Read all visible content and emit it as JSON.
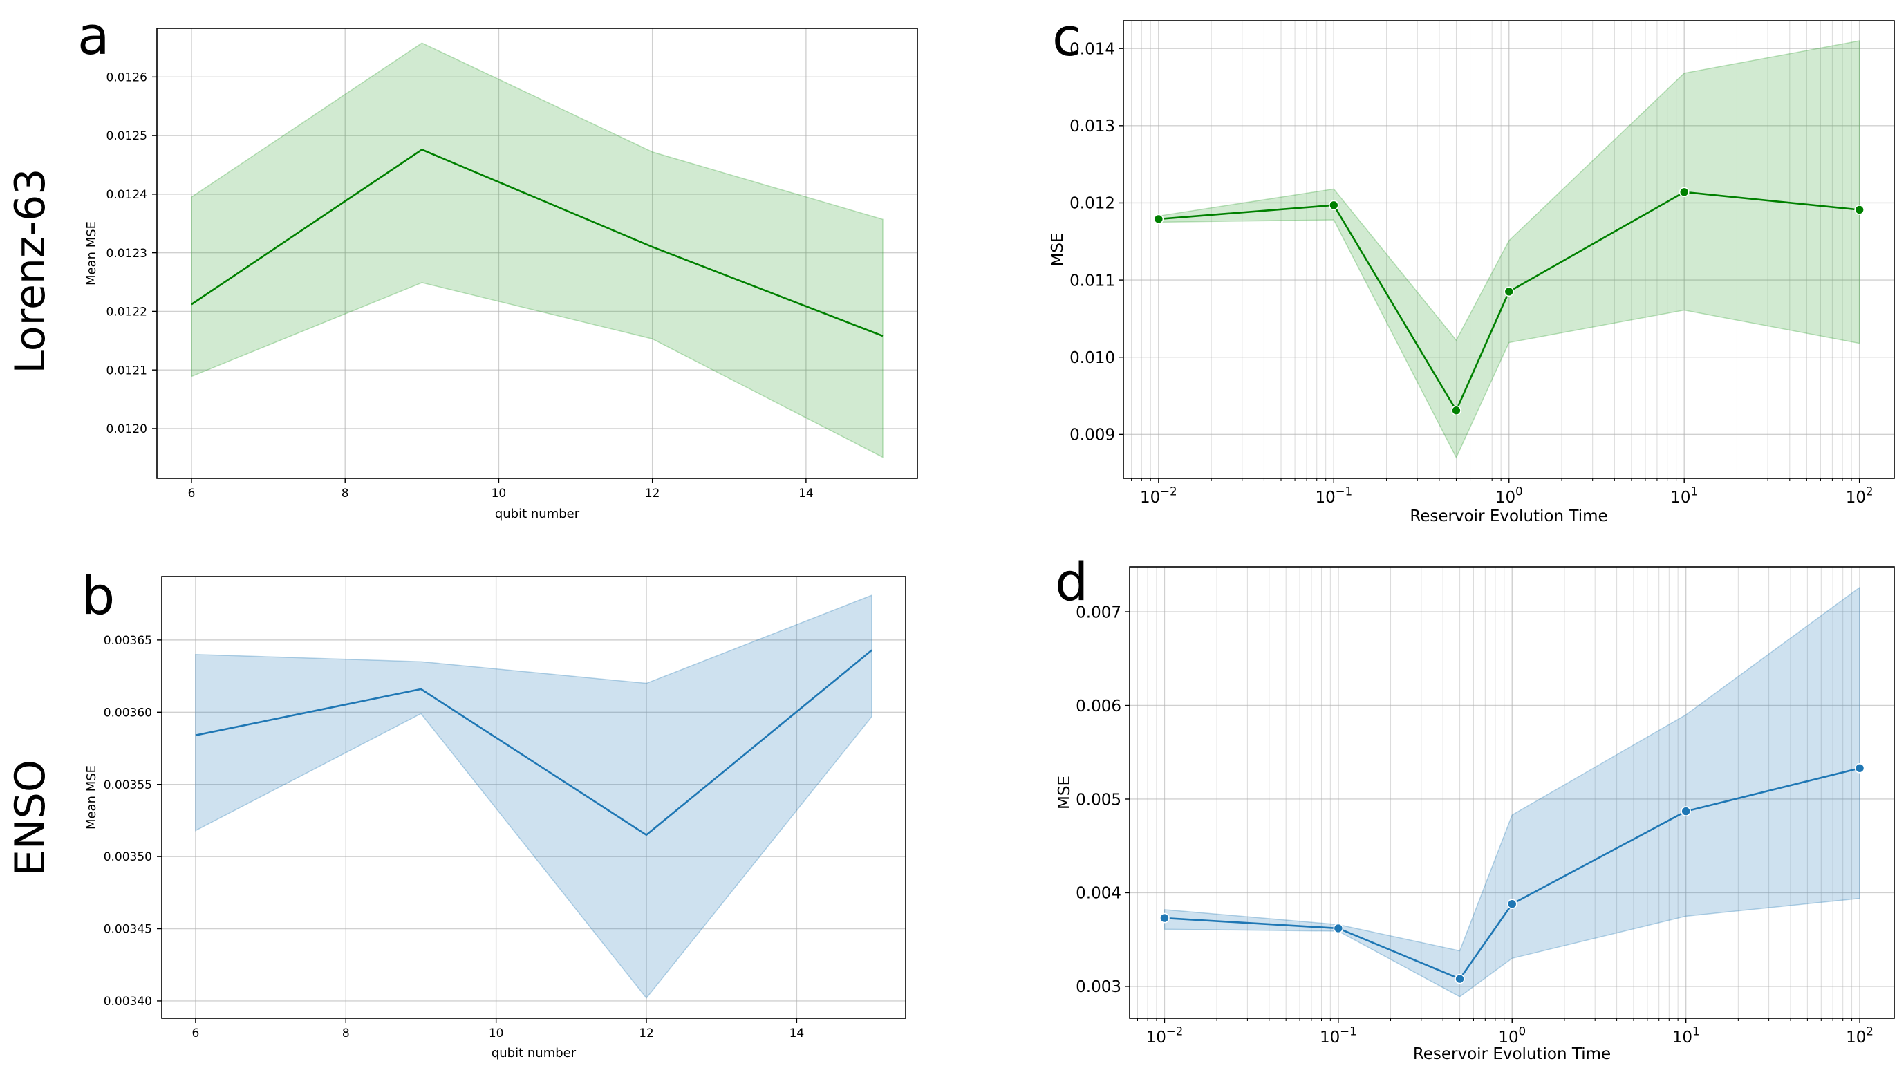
{
  "row_labels": [
    "Lorenz-63",
    "ENSO"
  ],
  "chart_data": [
    {
      "panel": "a",
      "type": "line",
      "xscale": "linear",
      "title": "",
      "xlabel": "qubit number",
      "ylabel": "Mean MSE",
      "xlim": [
        5.55,
        15.45
      ],
      "ylim": [
        0.011915,
        0.012683
      ],
      "xticks": [
        6,
        8,
        10,
        12,
        14
      ],
      "xtick_labels": [
        "6",
        "8",
        "10",
        "12",
        "14"
      ],
      "yticks": [
        0.012,
        0.0121,
        0.0122,
        0.0123,
        0.0124,
        0.0125,
        0.0126
      ],
      "ytick_labels": [
        "0.0120",
        "0.0121",
        "0.0122",
        "0.0123",
        "0.0124",
        "0.0125",
        "0.0126"
      ],
      "grid": true,
      "markers": false,
      "color": "#008000",
      "band_color": "#2ca02c",
      "x": [
        6,
        9,
        12,
        15
      ],
      "values": [
        0.012212,
        0.012476,
        0.01231,
        0.012158
      ],
      "lower": [
        0.012089,
        0.012249,
        0.012153,
        0.011951
      ],
      "upper": [
        0.012395,
        0.012658,
        0.012472,
        0.012357
      ]
    },
    {
      "panel": "b",
      "type": "line",
      "xscale": "linear",
      "title": "",
      "xlabel": "qubit number",
      "ylabel": "Mean MSE",
      "xlim": [
        5.55,
        15.45
      ],
      "ylim": [
        0.003388,
        0.003694
      ],
      "xticks": [
        6,
        8,
        10,
        12,
        14
      ],
      "xtick_labels": [
        "6",
        "8",
        "10",
        "12",
        "14"
      ],
      "yticks": [
        0.0034,
        0.00345,
        0.0035,
        0.00355,
        0.0036,
        0.00365
      ],
      "ytick_labels": [
        "0.00340",
        "0.00345",
        "0.00350",
        "0.00355",
        "0.00360",
        "0.00365"
      ],
      "grid": true,
      "markers": false,
      "color": "#1f77b4",
      "band_color": "#1f77b4",
      "x": [
        6,
        9,
        12,
        15
      ],
      "values": [
        0.003584,
        0.003616,
        0.003515,
        0.003643
      ],
      "lower": [
        0.003518,
        0.003599,
        0.003402,
        0.003597
      ],
      "upper": [
        0.00364,
        0.003635,
        0.00362,
        0.003681
      ]
    },
    {
      "panel": "c",
      "type": "line",
      "xscale": "log",
      "title": "",
      "xlabel": "Reservoir Evolution Time",
      "ylabel": "MSE",
      "xlim": [
        0.0063,
        158
      ],
      "ylim": [
        0.00843,
        0.01436
      ],
      "xticks": [
        0.01,
        0.1,
        1,
        10,
        100
      ],
      "xtick_labels": [
        [
          "10",
          "−2"
        ],
        [
          "10",
          "−1"
        ],
        [
          "10",
          "0"
        ],
        [
          "10",
          "1"
        ],
        [
          "10",
          "2"
        ]
      ],
      "yticks": [
        0.009,
        0.01,
        0.011,
        0.012,
        0.013,
        0.014
      ],
      "ytick_labels": [
        "0.009",
        "0.010",
        "0.011",
        "0.012",
        "0.013",
        "0.014"
      ],
      "grid": true,
      "markers": true,
      "color": "#008000",
      "band_color": "#2ca02c",
      "x": [
        0.01,
        0.1,
        0.5,
        1,
        10,
        100
      ],
      "values": [
        0.01179,
        0.01197,
        0.00931,
        0.01085,
        0.01214,
        0.01191
      ],
      "lower": [
        0.01175,
        0.01178,
        0.0087,
        0.01019,
        0.01061,
        0.01018
      ],
      "upper": [
        0.01183,
        0.01218,
        0.01022,
        0.01151,
        0.01368,
        0.0141
      ]
    },
    {
      "panel": "d",
      "type": "line",
      "xscale": "log",
      "title": "",
      "xlabel": "Reservoir Evolution Time",
      "ylabel": "MSE",
      "xlim": [
        0.0063,
        158
      ],
      "ylim": [
        0.00266,
        0.00748
      ],
      "xticks": [
        0.01,
        0.1,
        1,
        10,
        100
      ],
      "xtick_labels": [
        [
          "10",
          "−2"
        ],
        [
          "10",
          "−1"
        ],
        [
          "10",
          "0"
        ],
        [
          "10",
          "1"
        ],
        [
          "10",
          "2"
        ]
      ],
      "yticks": [
        0.003,
        0.004,
        0.005,
        0.006,
        0.007
      ],
      "ytick_labels": [
        "0.003",
        "0.004",
        "0.005",
        "0.006",
        "0.007"
      ],
      "grid": true,
      "markers": true,
      "color": "#1f77b4",
      "band_color": "#1f77b4",
      "x": [
        0.01,
        0.1,
        0.5,
        1,
        10,
        100
      ],
      "values": [
        0.00373,
        0.00362,
        0.00308,
        0.00388,
        0.00487,
        0.00533
      ],
      "lower": [
        0.00361,
        0.00359,
        0.00289,
        0.0033,
        0.00375,
        0.00394
      ],
      "upper": [
        0.00382,
        0.00366,
        0.00338,
        0.00483,
        0.0059,
        0.00726
      ]
    }
  ]
}
